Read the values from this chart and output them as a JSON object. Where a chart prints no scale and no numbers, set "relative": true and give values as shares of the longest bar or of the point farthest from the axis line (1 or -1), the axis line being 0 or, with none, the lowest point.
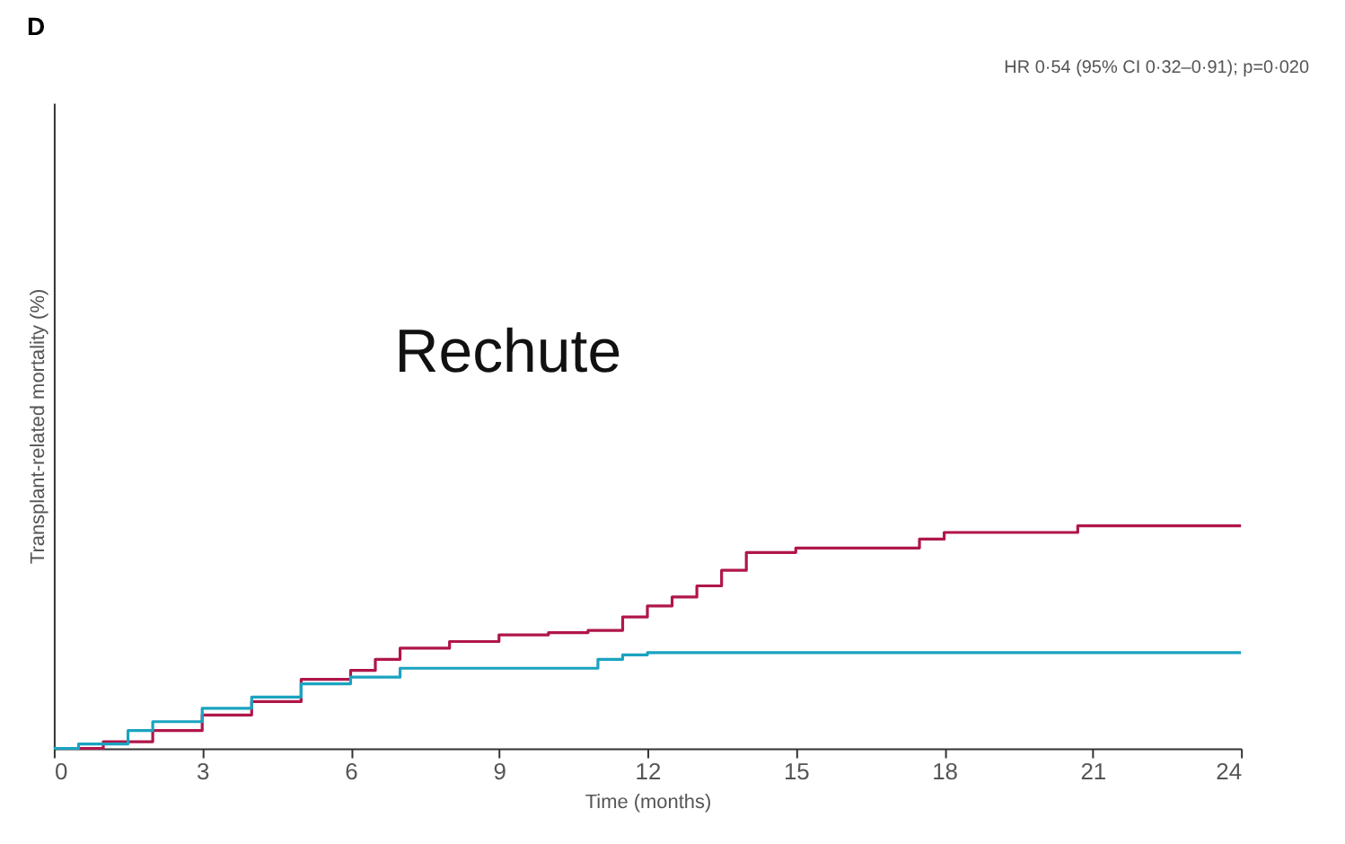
{
  "chart_data": {
    "type": "step",
    "title": "D",
    "xlabel": "Time (months)",
    "ylabel": "Transplant-related mortality (%)",
    "relative": true,
    "xlim": [
      0,
      24
    ],
    "xticks": [
      0,
      3,
      6,
      9,
      12,
      15,
      18,
      21,
      24
    ],
    "grid": false,
    "annotations": [
      "HR 0·54 (95% CI 0·32–0·91); p=0·020",
      "Rechute"
    ],
    "series": [
      {
        "color": "#b0164a",
        "x": [
          0,
          1,
          2,
          3,
          4,
          5,
          6,
          6.5,
          7,
          8,
          9,
          10,
          10.8,
          11.5,
          12,
          12.5,
          13,
          13.5,
          14,
          15,
          17,
          17.5,
          18,
          20.5,
          20.7,
          24
        ],
        "values": [
          0,
          0.03,
          0.08,
          0.15,
          0.21,
          0.31,
          0.35,
          0.4,
          0.45,
          0.48,
          0.51,
          0.52,
          0.53,
          0.59,
          0.64,
          0.68,
          0.73,
          0.8,
          0.88,
          0.9,
          0.9,
          0.94,
          0.97,
          0.97,
          1,
          1
        ]
      },
      {
        "color": "#1aa3c0",
        "x": [
          0,
          0.5,
          1.5,
          2,
          3,
          4,
          5,
          6,
          7,
          10.5,
          11,
          11.5,
          12,
          24
        ],
        "values": [
          0,
          0.02,
          0.08,
          0.12,
          0.18,
          0.23,
          0.29,
          0.32,
          0.36,
          0.36,
          0.4,
          0.42,
          0.43,
          0.43
        ]
      }
    ]
  }
}
